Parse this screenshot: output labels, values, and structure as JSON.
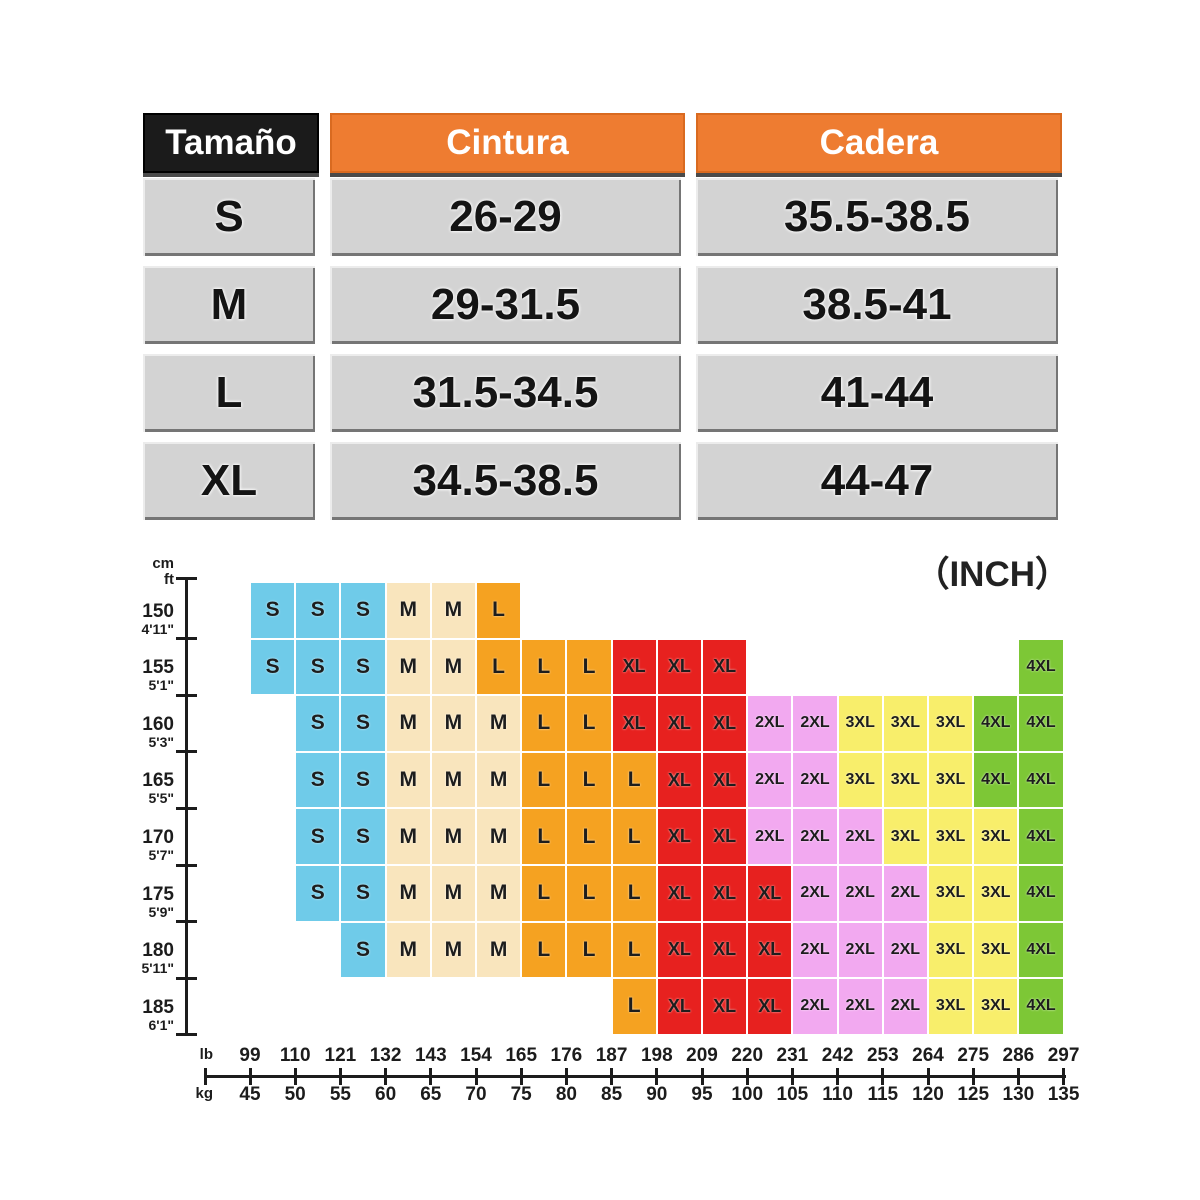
{
  "size_table": {
    "columns": [
      "Tamaño",
      "Cintura",
      "Cadera"
    ],
    "rows": [
      {
        "size": "S",
        "cintura": "26-29",
        "cadera": "35.5-38.5"
      },
      {
        "size": "M",
        "cintura": "29-31.5",
        "cadera": "38.5-41"
      },
      {
        "size": "L",
        "cintura": "31.5-34.5",
        "cadera": "41-44"
      },
      {
        "size": "XL",
        "cintura": "34.5-38.5",
        "cadera": "44-47"
      }
    ]
  },
  "unit_note": "（INCH）",
  "chart_data": {
    "type": "heatmap",
    "title": "",
    "x_axis": {
      "top_unit": "lb",
      "bottom_unit": "kg",
      "lb": [
        99,
        110,
        121,
        132,
        143,
        154,
        165,
        176,
        187,
        198,
        209,
        220,
        231,
        242,
        253,
        264,
        275,
        286,
        297
      ],
      "kg": [
        45,
        50,
        55,
        60,
        65,
        70,
        75,
        80,
        85,
        90,
        95,
        100,
        105,
        110,
        115,
        120,
        125,
        130,
        135
      ]
    },
    "y_axis": {
      "units": [
        "cm",
        "ft"
      ],
      "cm": [
        150,
        155,
        160,
        165,
        170,
        175,
        180,
        185
      ],
      "ft": [
        "4'11\"",
        "5'1\"",
        "5'3\"",
        "5'5\"",
        "5'7\"",
        "5'9\"",
        "5'11\"",
        "6'1\""
      ]
    },
    "sizes": [
      "S",
      "M",
      "L",
      "XL",
      "2XL",
      "3XL",
      "4XL"
    ],
    "colors": {
      "S": "#6fcbe9",
      "M": "#f9e5bd",
      "L": "#f5a221",
      "XL": "#e7211f",
      "2XL": "#f2a9f0",
      "3XL": "#f8ee6b",
      "4XL": "#7dc736"
    },
    "rows": [
      {
        "cm": 150,
        "segments": [
          {
            "size": "S",
            "from": 0,
            "to": 2
          },
          {
            "size": "M",
            "from": 3,
            "to": 4
          },
          {
            "size": "L",
            "from": 5,
            "to": 5
          }
        ]
      },
      {
        "cm": 155,
        "segments": [
          {
            "size": "S",
            "from": 0,
            "to": 2
          },
          {
            "size": "M",
            "from": 3,
            "to": 4
          },
          {
            "size": "L",
            "from": 5,
            "to": 7
          },
          {
            "size": "XL",
            "from": 8,
            "to": 10
          },
          {
            "size": "4XL",
            "from": 17,
            "to": 17
          }
        ]
      },
      {
        "cm": 160,
        "segments": [
          {
            "size": "S",
            "from": 1,
            "to": 2
          },
          {
            "size": "M",
            "from": 3,
            "to": 5
          },
          {
            "size": "L",
            "from": 6,
            "to": 7
          },
          {
            "size": "XL",
            "from": 8,
            "to": 10
          },
          {
            "size": "2XL",
            "from": 11,
            "to": 12
          },
          {
            "size": "3XL",
            "from": 13,
            "to": 15
          },
          {
            "size": "4XL",
            "from": 16,
            "to": 17
          }
        ]
      },
      {
        "cm": 165,
        "segments": [
          {
            "size": "S",
            "from": 1,
            "to": 2
          },
          {
            "size": "M",
            "from": 3,
            "to": 5
          },
          {
            "size": "L",
            "from": 6,
            "to": 8
          },
          {
            "size": "XL",
            "from": 9,
            "to": 10
          },
          {
            "size": "2XL",
            "from": 11,
            "to": 12
          },
          {
            "size": "3XL",
            "from": 13,
            "to": 15
          },
          {
            "size": "4XL",
            "from": 16,
            "to": 17
          }
        ]
      },
      {
        "cm": 170,
        "segments": [
          {
            "size": "S",
            "from": 1,
            "to": 2
          },
          {
            "size": "M",
            "from": 3,
            "to": 5
          },
          {
            "size": "L",
            "from": 6,
            "to": 8
          },
          {
            "size": "XL",
            "from": 9,
            "to": 10
          },
          {
            "size": "2XL",
            "from": 11,
            "to": 13
          },
          {
            "size": "3XL",
            "from": 14,
            "to": 16
          },
          {
            "size": "4XL",
            "from": 17,
            "to": 17
          }
        ]
      },
      {
        "cm": 175,
        "segments": [
          {
            "size": "S",
            "from": 1,
            "to": 2
          },
          {
            "size": "M",
            "from": 3,
            "to": 5
          },
          {
            "size": "L",
            "from": 6,
            "to": 8
          },
          {
            "size": "XL",
            "from": 9,
            "to": 11
          },
          {
            "size": "2XL",
            "from": 12,
            "to": 14
          },
          {
            "size": "3XL",
            "from": 15,
            "to": 16
          },
          {
            "size": "4XL",
            "from": 17,
            "to": 17
          }
        ]
      },
      {
        "cm": 180,
        "segments": [
          {
            "size": "S",
            "from": 2,
            "to": 2
          },
          {
            "size": "M",
            "from": 3,
            "to": 5
          },
          {
            "size": "L",
            "from": 6,
            "to": 8
          },
          {
            "size": "XL",
            "from": 9,
            "to": 11
          },
          {
            "size": "2XL",
            "from": 12,
            "to": 14
          },
          {
            "size": "3XL",
            "from": 15,
            "to": 16
          },
          {
            "size": "4XL",
            "from": 17,
            "to": 17
          }
        ]
      },
      {
        "cm": 185,
        "segments": [
          {
            "size": "L",
            "from": 8,
            "to": 8
          },
          {
            "size": "XL",
            "from": 9,
            "to": 11
          },
          {
            "size": "2XL",
            "from": 12,
            "to": 14
          },
          {
            "size": "3XL",
            "from": 15,
            "to": 16
          },
          {
            "size": "4XL",
            "from": 17,
            "to": 17
          }
        ]
      }
    ]
  }
}
